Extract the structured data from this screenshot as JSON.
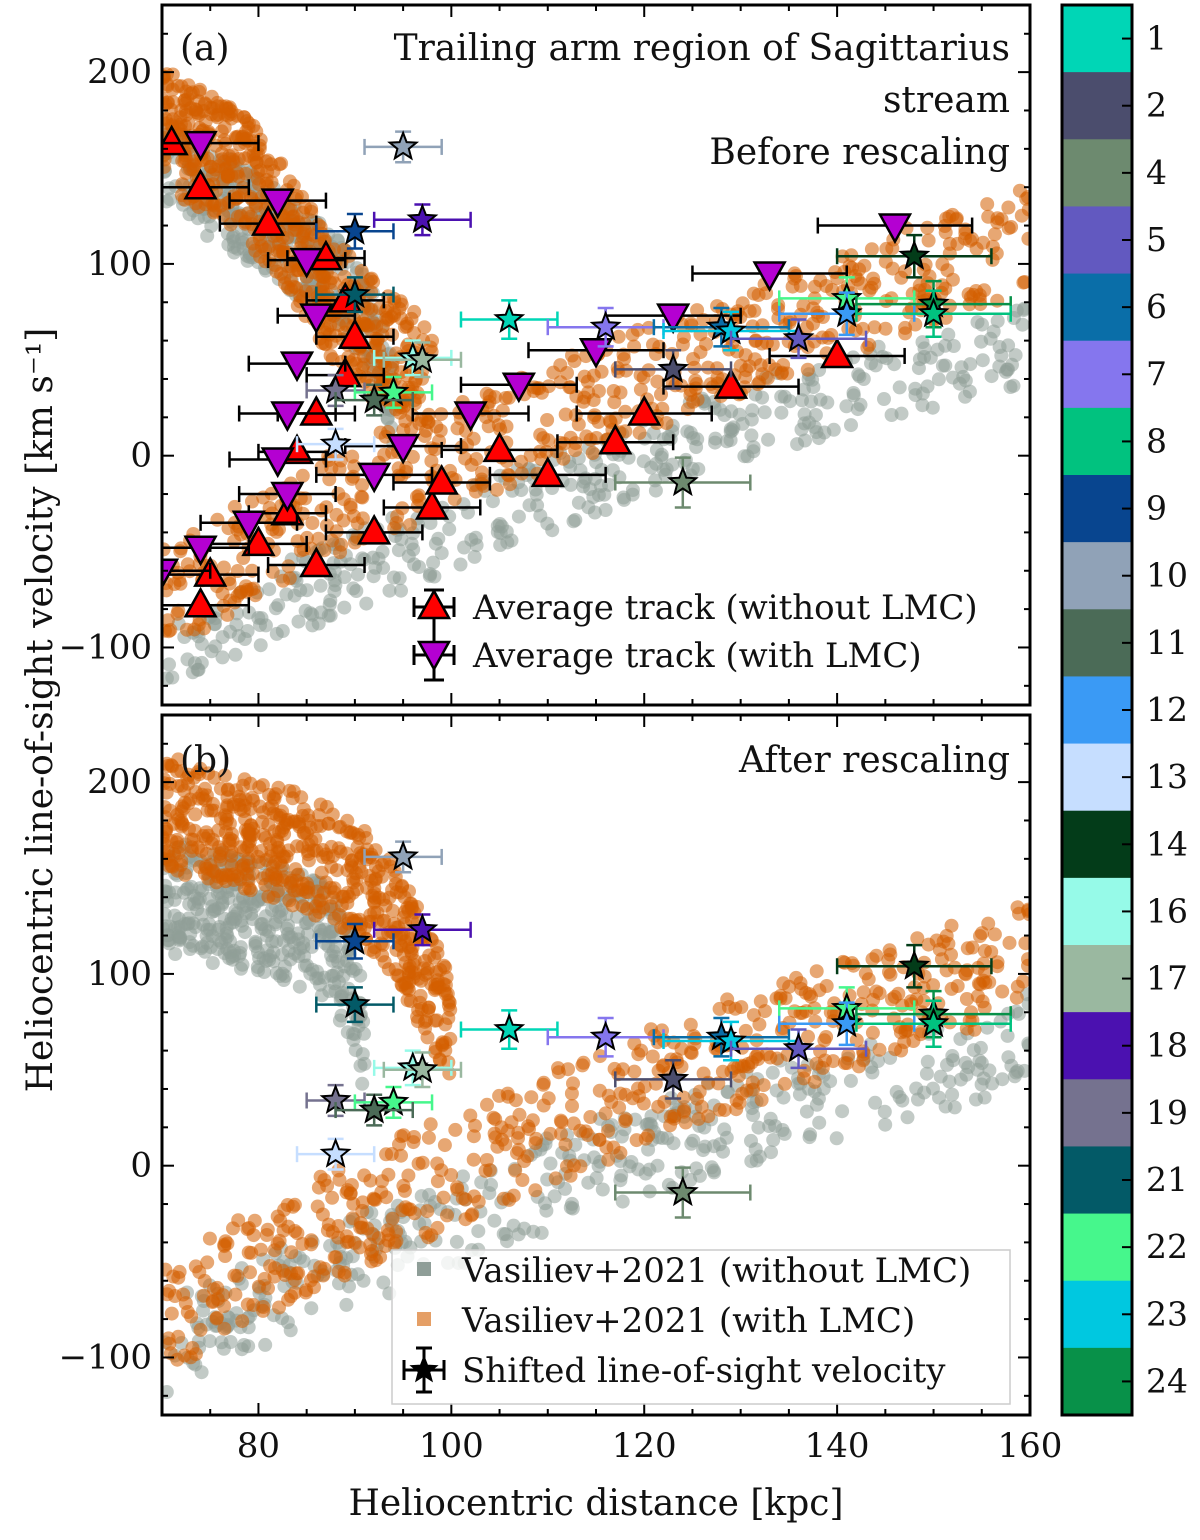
{
  "chart_data": {
    "type": "scatter",
    "xlabel": "Heliocentric distance [kpc]",
    "ylabel": "Heliocentric line-of-sight velocity [km s⁻¹]",
    "xlim": [
      70,
      160
    ],
    "ylim": [
      -130,
      235
    ],
    "xticks": [
      80,
      100,
      120,
      140,
      160
    ],
    "yticks": [
      -100,
      0,
      100,
      200
    ],
    "colors": {
      "model_without_lmc": "#8f9e98",
      "model_with_lmc": "#d45f00",
      "track_without": "#ff0000",
      "track_with": "#b400d2"
    },
    "panels": [
      {
        "id": "a",
        "tag": "(a)",
        "title_lines": [
          "Trailing arm region of Sagittarius",
          "stream",
          "Before rescaling"
        ]
      },
      {
        "id": "b",
        "tag": "(b)",
        "title_lines": [
          "After rescaling"
        ]
      }
    ],
    "legend_a": {
      "placement": "lower-right",
      "items": [
        "Average track (without LMC)",
        "Average track (with LMC)"
      ]
    },
    "legend_b": {
      "placement": "lower-right",
      "items": [
        "Vasiliev+2021 (without LMC)",
        "Vasiliev+2021 (with LMC)",
        "Shifted line-of-sight velocity"
      ]
    },
    "model_tracks_before": {
      "without_lmc": {
        "branch_upper": {
          "x": [
            70,
            74,
            80,
            86,
            90,
            92,
            93,
            94
          ],
          "y_center": [
            158,
            140,
            122,
            100,
            80,
            65,
            48,
            30
          ],
          "half_width": 24
        },
        "branch_lower": {
          "x": [
            70,
            90,
            110,
            130,
            160
          ],
          "y_center": [
            -102,
            -60,
            -20,
            18,
            58
          ],
          "half_width": 20
        }
      },
      "with_lmc": {
        "branch_upper": {
          "x": [
            70,
            78,
            84,
            88,
            92,
            96,
            98
          ],
          "y_center": [
            170,
            150,
            110,
            80,
            60,
            45,
            30
          ],
          "half_width": 32
        },
        "branch_lower": {
          "x": [
            70,
            90,
            110,
            130,
            160
          ],
          "y_center": [
            -75,
            -20,
            20,
            60,
            115
          ],
          "half_width": 28
        }
      }
    },
    "model_tracks_after": {
      "without_lmc": {
        "branch_upper": {
          "x": [
            70,
            80,
            86,
            88,
            90,
            91
          ],
          "y_center": [
            140,
            130,
            120,
            110,
            90,
            60
          ],
          "half_width": 30
        },
        "branch_lower": {
          "x": [
            70,
            90,
            110,
            130,
            160
          ],
          "y_center": [
            -95,
            -50,
            -10,
            25,
            65
          ],
          "half_width": 25
        }
      },
      "with_lmc": {
        "branch_upper": {
          "x": [
            70,
            84,
            90,
            94,
            97,
            100
          ],
          "y_center": [
            185,
            165,
            150,
            130,
            100,
            70
          ],
          "half_width": 30
        },
        "branch_lower": {
          "x": [
            70,
            90,
            110,
            130,
            160
          ],
          "y_center": [
            -80,
            -25,
            20,
            60,
            110
          ],
          "half_width": 30
        }
      }
    },
    "average_track_without_lmc": [
      {
        "x": 71,
        "y": 163,
        "xerr": 3
      },
      {
        "x": 74,
        "y": 140,
        "xerr": 5
      },
      {
        "x": 81,
        "y": 121,
        "xerr": 5
      },
      {
        "x": 87,
        "y": 103,
        "xerr": 4
      },
      {
        "x": 89,
        "y": 81,
        "xerr": 4
      },
      {
        "x": 90,
        "y": 62,
        "xerr": 4
      },
      {
        "x": 89,
        "y": 42,
        "xerr": 4
      },
      {
        "x": 86,
        "y": 22,
        "xerr": 4
      },
      {
        "x": 84,
        "y": 2,
        "xerr": 4
      },
      {
        "x": 83,
        "y": -30,
        "xerr": 4
      },
      {
        "x": 80,
        "y": -46,
        "xerr": 5
      },
      {
        "x": 75,
        "y": -62,
        "xerr": 5
      },
      {
        "x": 74,
        "y": -78,
        "xerr": 5
      },
      {
        "x": 86,
        "y": -57,
        "xerr": 5
      },
      {
        "x": 92,
        "y": -40,
        "xerr": 5
      },
      {
        "x": 98,
        "y": -27,
        "xerr": 5
      },
      {
        "x": 99,
        "y": -14,
        "xerr": 5
      },
      {
        "x": 105,
        "y": 3,
        "xerr": 6
      },
      {
        "x": 110,
        "y": -10,
        "xerr": 6
      },
      {
        "x": 117,
        "y": 7,
        "xerr": 6
      },
      {
        "x": 120,
        "y": 22,
        "xerr": 7
      },
      {
        "x": 129,
        "y": 36,
        "xerr": 7
      },
      {
        "x": 140,
        "y": 52,
        "xerr": 7
      }
    ],
    "average_track_with_lmc": [
      {
        "x": 74,
        "y": 163,
        "xerr": 6
      },
      {
        "x": 82,
        "y": 133,
        "xerr": 5
      },
      {
        "x": 85,
        "y": 102,
        "xerr": 4
      },
      {
        "x": 86,
        "y": 73,
        "xerr": 4
      },
      {
        "x": 84,
        "y": 48,
        "xerr": 5
      },
      {
        "x": 83,
        "y": 22,
        "xerr": 5
      },
      {
        "x": 82,
        "y": -2,
        "xerr": 5
      },
      {
        "x": 83,
        "y": -20,
        "xerr": 5
      },
      {
        "x": 79,
        "y": -35,
        "xerr": 5
      },
      {
        "x": 74,
        "y": -48,
        "xerr": 5
      },
      {
        "x": 70,
        "y": -60,
        "xerr": 5
      },
      {
        "x": 92,
        "y": -10,
        "xerr": 6
      },
      {
        "x": 95,
        "y": 5,
        "xerr": 6
      },
      {
        "x": 102,
        "y": 22,
        "xerr": 6
      },
      {
        "x": 107,
        "y": 37,
        "xerr": 6
      },
      {
        "x": 115,
        "y": 55,
        "xerr": 7
      },
      {
        "x": 123,
        "y": 73,
        "xerr": 7
      },
      {
        "x": 133,
        "y": 95,
        "xerr": 8
      },
      {
        "x": 146,
        "y": 120,
        "xerr": 8
      }
    ],
    "colorbar": {
      "labels": [
        "1",
        "2",
        "4",
        "5",
        "6",
        "7",
        "8",
        "9",
        "10",
        "11",
        "12",
        "13",
        "14",
        "16",
        "17",
        "18",
        "19",
        "21",
        "22",
        "23",
        "24"
      ],
      "colors": [
        "#00d6b6",
        "#4b4d6d",
        "#6d8a6f",
        "#6259c0",
        "#0a6ea8",
        "#8576ee",
        "#01c27f",
        "#08458f",
        "#90a2b7",
        "#4b6b57",
        "#3a9af5",
        "#c6deff",
        "#033c19",
        "#96fae8",
        "#9ab8a0",
        "#4b11b0",
        "#75728f",
        "#035a67",
        "#46f78c",
        "#00c8e0",
        "#089149"
      ]
    },
    "stars_before": [
      {
        "g": "10",
        "x": 95,
        "y": 161,
        "xerr": 4,
        "yerr": 8
      },
      {
        "g": "18",
        "x": 97,
        "y": 123,
        "xerr": 5,
        "yerr": 8
      },
      {
        "g": "9",
        "x": 90,
        "y": 117,
        "xerr": 4,
        "yerr": 9
      },
      {
        "g": "21",
        "x": 90,
        "y": 84,
        "xerr": 4,
        "yerr": 9
      },
      {
        "g": "1",
        "x": 106,
        "y": 71,
        "xerr": 5,
        "yerr": 10
      },
      {
        "g": "16",
        "x": 96,
        "y": 51,
        "xerr": 4,
        "yerr": 9
      },
      {
        "g": "17",
        "x": 97,
        "y": 50,
        "xerr": 4,
        "yerr": 9
      },
      {
        "g": "19",
        "x": 88,
        "y": 34,
        "xerr": 3,
        "yerr": 8
      },
      {
        "g": "22",
        "x": 94,
        "y": 33,
        "xerr": 4,
        "yerr": 8
      },
      {
        "g": "11",
        "x": 92,
        "y": 29,
        "xerr": 4,
        "yerr": 8
      },
      {
        "g": "13",
        "x": 88,
        "y": 6,
        "xerr": 4,
        "yerr": 8
      },
      {
        "g": "7",
        "x": 116,
        "y": 67,
        "xerr": 6,
        "yerr": 10
      },
      {
        "g": "2",
        "x": 123,
        "y": 45,
        "xerr": 6,
        "yerr": 10
      },
      {
        "g": "4",
        "x": 124,
        "y": -14,
        "xerr": 7,
        "yerr": 13
      },
      {
        "g": "6",
        "x": 128,
        "y": 67,
        "xerr": 7,
        "yerr": 10
      },
      {
        "g": "23",
        "x": 129,
        "y": 65,
        "xerr": 7,
        "yerr": 10
      },
      {
        "g": "5",
        "x": 136,
        "y": 61,
        "xerr": 7,
        "yerr": 10
      },
      {
        "g": "22",
        "x": 141,
        "y": 82,
        "xerr": 7,
        "yerr": 11
      },
      {
        "g": "12",
        "x": 141,
        "y": 74,
        "xerr": 7,
        "yerr": 11
      },
      {
        "g": "14",
        "x": 148,
        "y": 104,
        "xerr": 8,
        "yerr": 11
      },
      {
        "g": "24",
        "x": 150,
        "y": 79,
        "xerr": 8,
        "yerr": 12
      },
      {
        "g": "8",
        "x": 150,
        "y": 74,
        "xerr": 8,
        "yerr": 12
      }
    ],
    "stars_after": [
      {
        "g": "10",
        "x": 95,
        "y": 161,
        "xerr": 4,
        "yerr": 8
      },
      {
        "g": "18",
        "x": 97,
        "y": 123,
        "xerr": 5,
        "yerr": 8
      },
      {
        "g": "9",
        "x": 90,
        "y": 117,
        "xerr": 4,
        "yerr": 9
      },
      {
        "g": "21",
        "x": 90,
        "y": 84,
        "xerr": 4,
        "yerr": 9
      },
      {
        "g": "1",
        "x": 106,
        "y": 71,
        "xerr": 5,
        "yerr": 10
      },
      {
        "g": "16",
        "x": 96,
        "y": 51,
        "xerr": 4,
        "yerr": 9
      },
      {
        "g": "17",
        "x": 97,
        "y": 50,
        "xerr": 4,
        "yerr": 9
      },
      {
        "g": "19",
        "x": 88,
        "y": 34,
        "xerr": 3,
        "yerr": 8
      },
      {
        "g": "22",
        "x": 94,
        "y": 33,
        "xerr": 4,
        "yerr": 8
      },
      {
        "g": "11",
        "x": 92,
        "y": 29,
        "xerr": 4,
        "yerr": 8
      },
      {
        "g": "13",
        "x": 88,
        "y": 6,
        "xerr": 4,
        "yerr": 8
      },
      {
        "g": "7",
        "x": 116,
        "y": 67,
        "xerr": 6,
        "yerr": 10
      },
      {
        "g": "2",
        "x": 123,
        "y": 45,
        "xerr": 6,
        "yerr": 10
      },
      {
        "g": "4",
        "x": 124,
        "y": -14,
        "xerr": 7,
        "yerr": 13
      },
      {
        "g": "6",
        "x": 128,
        "y": 67,
        "xerr": 7,
        "yerr": 10
      },
      {
        "g": "23",
        "x": 129,
        "y": 65,
        "xerr": 7,
        "yerr": 10
      },
      {
        "g": "5",
        "x": 136,
        "y": 61,
        "xerr": 7,
        "yerr": 10
      },
      {
        "g": "22",
        "x": 141,
        "y": 82,
        "xerr": 7,
        "yerr": 11
      },
      {
        "g": "12",
        "x": 141,
        "y": 74,
        "xerr": 7,
        "yerr": 11
      },
      {
        "g": "14",
        "x": 148,
        "y": 104,
        "xerr": 8,
        "yerr": 11
      },
      {
        "g": "24",
        "x": 150,
        "y": 79,
        "xerr": 8,
        "yerr": 12
      },
      {
        "g": "8",
        "x": 150,
        "y": 74,
        "xerr": 8,
        "yerr": 12
      }
    ]
  }
}
